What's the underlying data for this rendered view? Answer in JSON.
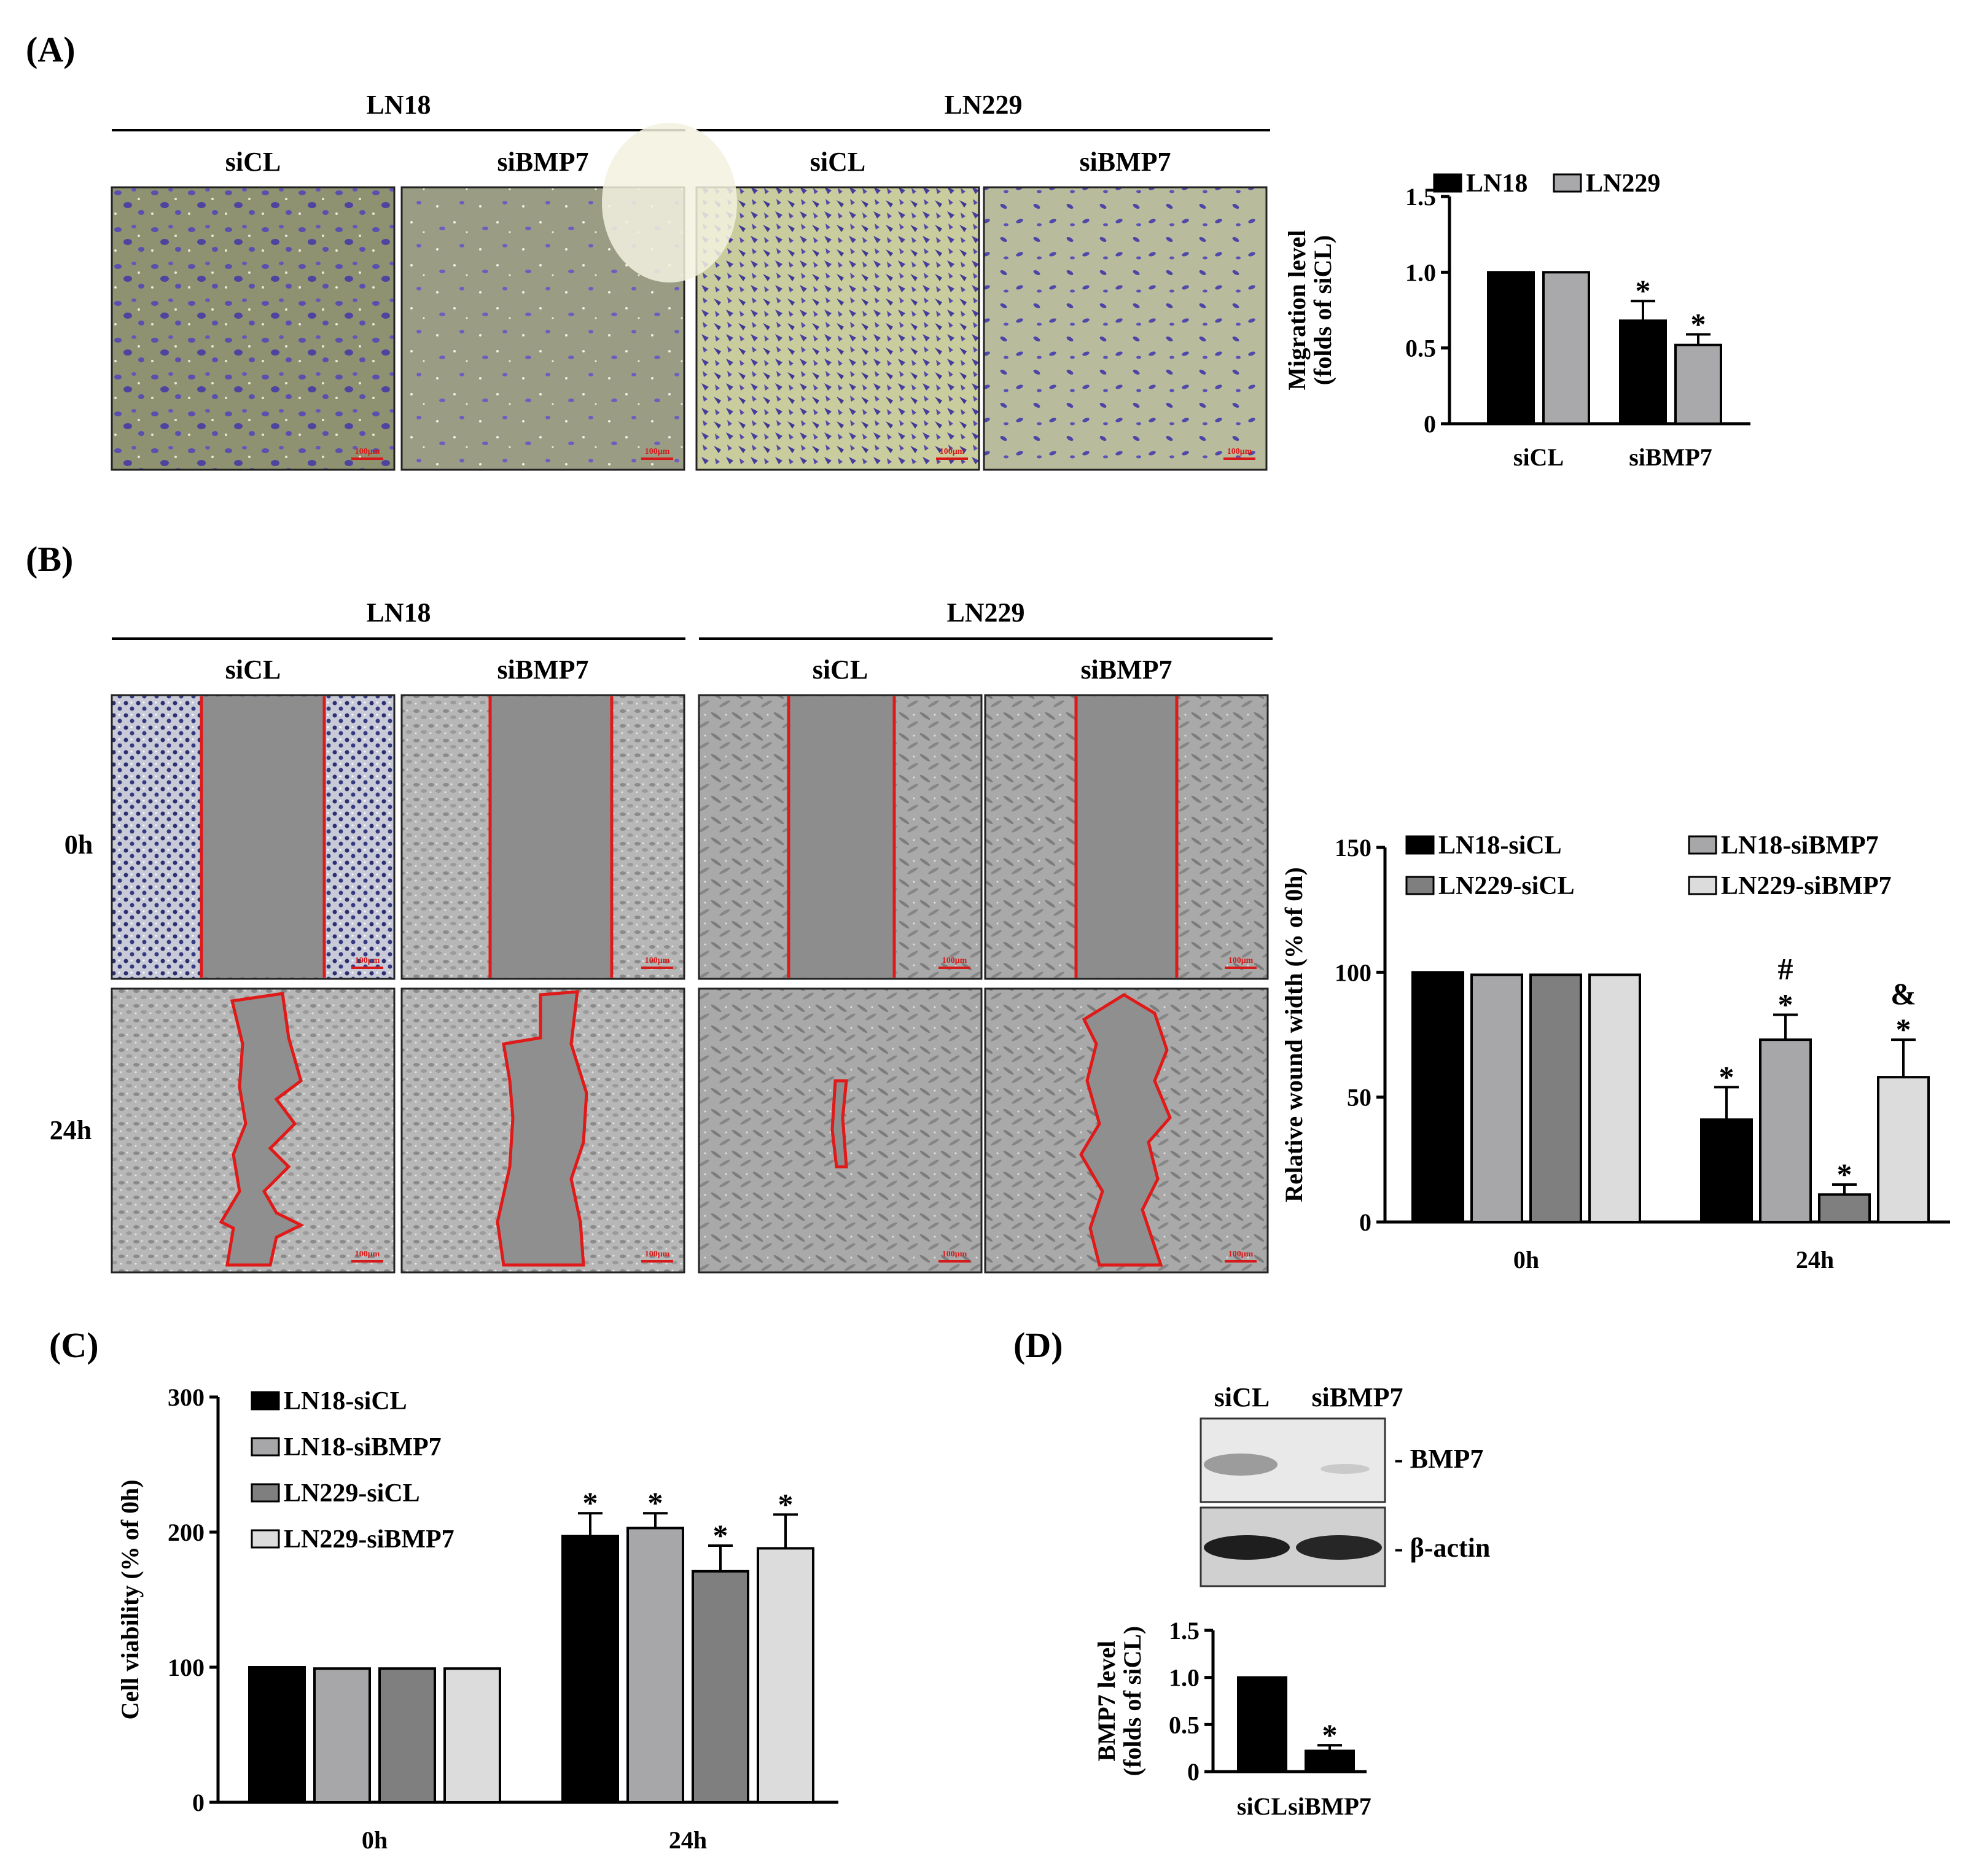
{
  "panel_A": {
    "letter": "(A)",
    "groups": [
      {
        "name": "LN18",
        "conditions": [
          "siCL",
          "siBMP7"
        ]
      },
      {
        "name": "LN229",
        "conditions": [
          "siCL",
          "siBMP7"
        ]
      }
    ],
    "scale_bar": "100μm"
  },
  "panel_B": {
    "letter": "(B)",
    "groups": [
      {
        "name": "LN18",
        "conditions": [
          "siCL",
          "siBMP7"
        ]
      },
      {
        "name": "LN229",
        "conditions": [
          "siCL",
          "siBMP7"
        ]
      }
    ],
    "rows": [
      "0h",
      "24h"
    ],
    "scale_bar": "100μm"
  },
  "panel_C": {
    "letter": "(C)"
  },
  "panel_D": {
    "letter": "(D)",
    "blot_lanes": [
      "siCL",
      "siBMP7"
    ],
    "blot_bands": [
      "- BMP7",
      "- β-actin"
    ]
  },
  "colors": {
    "LN18": "#000000",
    "LN229": "#a9a9ab",
    "LN18-siCL": "#000000",
    "LN18-siBMP7": "#a7a7aa",
    "LN229-siCL": "#7f7f7f",
    "LN229-siBMP7": "#dcdcdc",
    "stain_crystal_violet": "#5b4fb0",
    "field_background": "#8f9370",
    "wound_outline": "#e01919"
  },
  "chart_data": [
    {
      "id": "A",
      "type": "bar",
      "categories": [
        "siCL",
        "siBMP7"
      ],
      "series": [
        {
          "name": "LN18",
          "values": [
            1.0,
            0.68
          ],
          "errors": [
            0,
            0.13
          ]
        },
        {
          "name": "LN229",
          "values": [
            1.0,
            0.52
          ],
          "errors": [
            0,
            0.07
          ]
        }
      ],
      "significance": [
        [
          "",
          "*"
        ],
        [
          "",
          "*"
        ]
      ],
      "ylabel": [
        "Migration level",
        "(folds of siCL)"
      ],
      "ylim": [
        0,
        1.5
      ],
      "yticks": [
        "0",
        "0.5",
        "1.0",
        "1.5"
      ],
      "legend": "top"
    },
    {
      "id": "B",
      "type": "bar",
      "categories": [
        "0h",
        "24h"
      ],
      "series": [
        {
          "name": "LN18-siCL",
          "values": [
            100,
            41
          ],
          "errors": [
            0,
            13
          ]
        },
        {
          "name": "LN18-siBMP7",
          "values": [
            99,
            73
          ],
          "errors": [
            0,
            10
          ]
        },
        {
          "name": "LN229-siCL",
          "values": [
            99,
            11
          ],
          "errors": [
            0,
            4
          ]
        },
        {
          "name": "LN229-siBMP7",
          "values": [
            99,
            58
          ],
          "errors": [
            0,
            15
          ]
        }
      ],
      "significance": [
        [
          "",
          "*"
        ],
        [
          "",
          "*\n#"
        ],
        [
          "",
          "*"
        ],
        [
          "",
          "*\n&"
        ]
      ],
      "ylabel": [
        "Relative wound width (% of 0h)"
      ],
      "ylim": [
        0,
        150
      ],
      "yticks": [
        "0",
        "50",
        "100",
        "150"
      ],
      "legend": "top"
    },
    {
      "id": "C",
      "type": "bar",
      "categories": [
        "0h",
        "24h"
      ],
      "series": [
        {
          "name": "LN18-siCL",
          "values": [
            100,
            197
          ],
          "errors": [
            0,
            17
          ]
        },
        {
          "name": "LN18-siBMP7",
          "values": [
            99,
            203
          ],
          "errors": [
            0,
            11
          ]
        },
        {
          "name": "LN229-siCL",
          "values": [
            99,
            171
          ],
          "errors": [
            0,
            19
          ]
        },
        {
          "name": "LN229-siBMP7",
          "values": [
            99,
            188
          ],
          "errors": [
            0,
            25
          ]
        }
      ],
      "significance": [
        [
          "",
          "*"
        ],
        [
          "",
          "*"
        ],
        [
          "",
          "*"
        ],
        [
          "",
          "*"
        ]
      ],
      "ylabel": [
        "Cell viability (% of 0h)"
      ],
      "ylim": [
        0,
        300
      ],
      "yticks": [
        "0",
        "100",
        "200",
        "300"
      ],
      "legend": "top-left"
    },
    {
      "id": "D",
      "type": "bar",
      "categories": [
        "siCL",
        "siBMP7"
      ],
      "series": [
        {
          "name": "",
          "values": [
            1.0,
            0.22
          ],
          "errors": [
            0,
            0.06
          ]
        }
      ],
      "significance": [
        [
          "",
          "*"
        ]
      ],
      "ylabel": [
        "BMP7 level",
        "(folds of siCL)"
      ],
      "ylim": [
        0,
        1.5
      ],
      "yticks": [
        "0",
        "0.5",
        "1.0",
        "1.5"
      ],
      "legend": "none"
    }
  ]
}
